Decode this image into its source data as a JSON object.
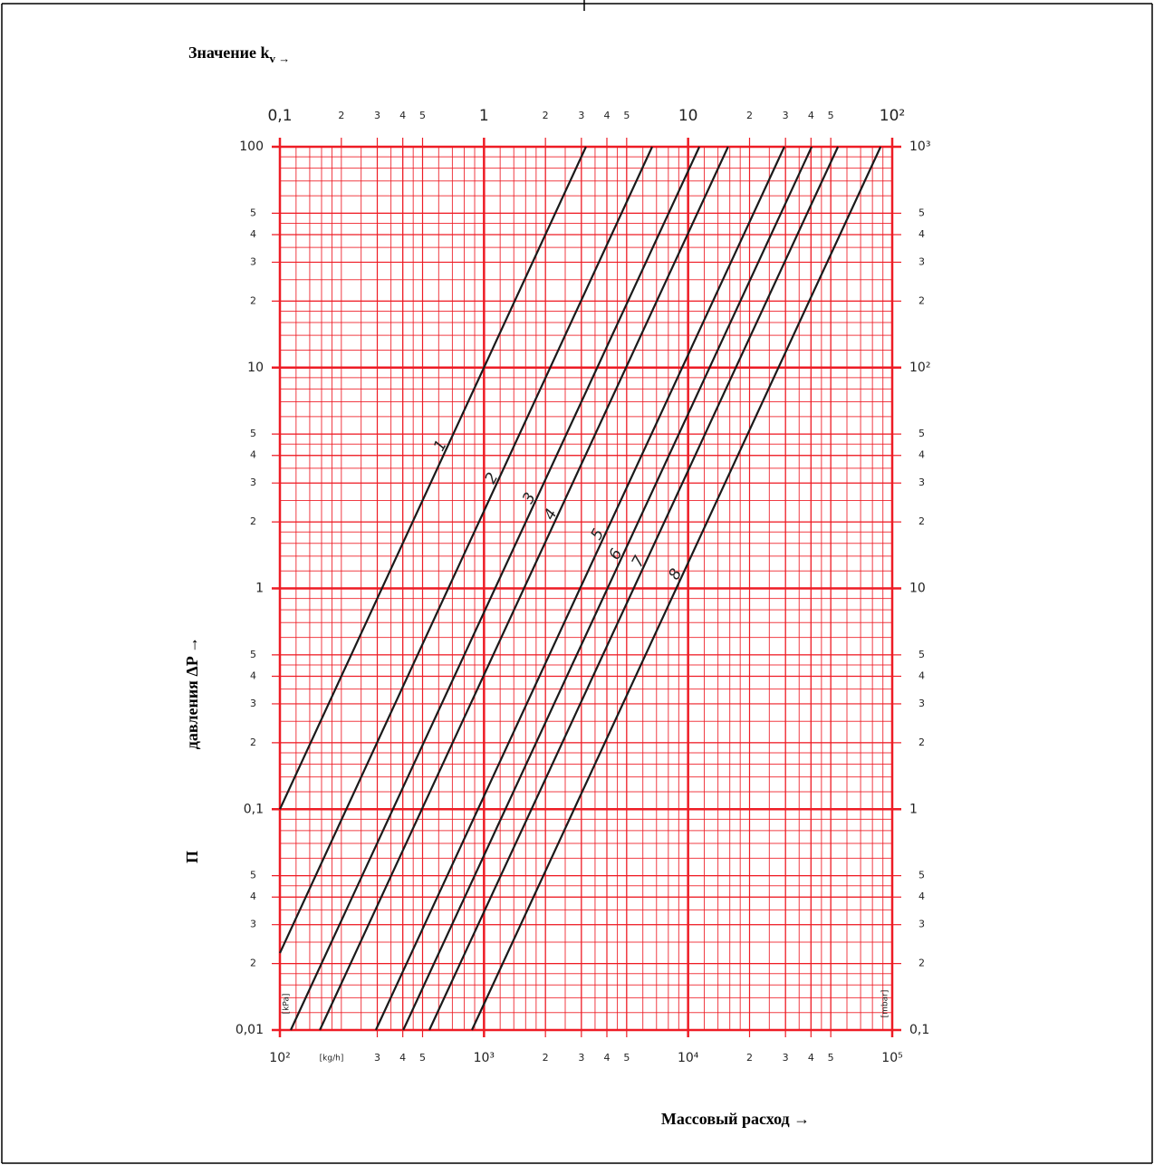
{
  "chart_data": {
    "type": "line",
    "x2_label": "Значение k",
    "x2_label_sub": "v →",
    "xlabel": "Массовый расход →",
    "ylabel_prefix": "П",
    "ylabel": "давления ΔP →",
    "x_unit": "[kg/h]",
    "y_unit": "[kPa]",
    "y2_unit": "[mbar]",
    "xscale": "log",
    "yscale": "log",
    "xlim": [
      100,
      100000
    ],
    "x2lim": [
      0.1,
      100
    ],
    "ylim": [
      0.01,
      100
    ],
    "y2lim": [
      0.1,
      1000
    ],
    "grid": true,
    "grid_color": "#ee1c25",
    "minor_grid": [
      1.2,
      1.4,
      1.6,
      1.8,
      2,
      2.5,
      3,
      3.5,
      4,
      4.5,
      5,
      6,
      7,
      8,
      9
    ],
    "xticks": [
      {
        "value": 100,
        "label": "10²"
      },
      {
        "value": 300,
        "label": "3"
      },
      {
        "value": 400,
        "label": "4"
      },
      {
        "value": 500,
        "label": "5"
      },
      {
        "value": 1000,
        "label": "10³"
      },
      {
        "value": 2000,
        "label": "2"
      },
      {
        "value": 3000,
        "label": "3"
      },
      {
        "value": 4000,
        "label": "4"
      },
      {
        "value": 5000,
        "label": "5"
      },
      {
        "value": 10000,
        "label": "10⁴"
      },
      {
        "value": 20000,
        "label": "2"
      },
      {
        "value": 30000,
        "label": "3"
      },
      {
        "value": 40000,
        "label": "4"
      },
      {
        "value": 50000,
        "label": "5"
      },
      {
        "value": 100000,
        "label": "10⁵"
      }
    ],
    "x2ticks": [
      {
        "value": 0.1,
        "label": "0,1"
      },
      {
        "value": 0.2,
        "label": "2"
      },
      {
        "value": 0.3,
        "label": "3"
      },
      {
        "value": 0.4,
        "label": "4"
      },
      {
        "value": 0.5,
        "label": "5"
      },
      1,
      2,
      3,
      4,
      5,
      10,
      {
        "value": 20,
        "label": "2"
      },
      {
        "value": 30,
        "label": "3"
      },
      {
        "value": 40,
        "label": "4"
      },
      {
        "value": 50,
        "label": "5"
      },
      {
        "value": 100,
        "label": "10²"
      }
    ],
    "yticks": [
      {
        "value": 0.01,
        "label": "0,01"
      },
      {
        "value": 0.02,
        "label": "2"
      },
      {
        "value": 0.03,
        "label": "3"
      },
      {
        "value": 0.04,
        "label": "4"
      },
      {
        "value": 0.05,
        "label": "5"
      },
      {
        "value": 0.1,
        "label": "0,1"
      },
      {
        "value": 0.2,
        "label": "2"
      },
      {
        "value": 0.3,
        "label": "3"
      },
      {
        "value": 0.4,
        "label": "4"
      },
      {
        "value": 0.5,
        "label": "5"
      },
      1,
      2,
      3,
      4,
      5,
      10,
      {
        "value": 20,
        "label": "2"
      },
      {
        "value": 30,
        "label": "3"
      },
      {
        "value": 40,
        "label": "4"
      },
      {
        "value": 50,
        "label": "5"
      },
      100
    ],
    "y2ticks": [
      {
        "value": 0.1,
        "label": "0,1"
      },
      {
        "value": 0.2,
        "label": "2"
      },
      {
        "value": 0.3,
        "label": "3"
      },
      {
        "value": 0.4,
        "label": "4"
      },
      {
        "value": 0.5,
        "label": "5"
      },
      1,
      2,
      3,
      4,
      5,
      10,
      {
        "value": 20,
        "label": "2"
      },
      {
        "value": 30,
        "label": "3"
      },
      {
        "value": 40,
        "label": "4"
      },
      {
        "value": 50,
        "label": "5"
      },
      {
        "value": 100,
        "label": "10²"
      },
      {
        "value": 200,
        "label": "2"
      },
      {
        "value": 300,
        "label": "3"
      },
      {
        "value": 400,
        "label": "4"
      },
      {
        "value": 500,
        "label": "5"
      },
      {
        "value": 1000,
        "label": "10³"
      }
    ],
    "series": [
      {
        "name": "1",
        "color": "#1a1a1a",
        "x": [
          100,
          3160
        ],
        "values": [
          0.1,
          100
        ]
      },
      {
        "name": "2",
        "color": "#1a1a1a",
        "x": [
          100,
          6670
        ],
        "values": [
          0.0223,
          100
        ]
      },
      {
        "name": "3",
        "color": "#1a1a1a",
        "x": [
          113,
          11350
        ],
        "values": [
          0.01,
          100
        ]
      },
      {
        "name": "4",
        "color": "#1a1a1a",
        "x": [
          157,
          15700
        ],
        "values": [
          0.01,
          100
        ]
      },
      {
        "name": "5",
        "color": "#1a1a1a",
        "x": [
          295,
          29600
        ],
        "values": [
          0.01,
          100
        ]
      },
      {
        "name": "6",
        "color": "#1a1a1a",
        "x": [
          402,
          40300
        ],
        "values": [
          0.01,
          100
        ]
      },
      {
        "name": "7",
        "color": "#1a1a1a",
        "x": [
          540,
          54200
        ],
        "values": [
          0.01,
          100
        ]
      },
      {
        "name": "8",
        "color": "#1a1a1a",
        "x": [
          873,
          87700
        ],
        "values": [
          0.01,
          100
        ]
      }
    ]
  }
}
